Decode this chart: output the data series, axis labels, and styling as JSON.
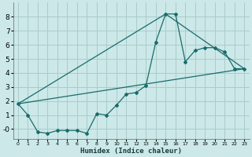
{
  "xlabel": "Humidex (Indice chaleur)",
  "bg_color": "#cce8e8",
  "grid_color": "#aacccc",
  "line_color": "#1a6b6b",
  "xlim": [
    -0.5,
    23.5
  ],
  "ylim": [
    -0.7,
    9.0
  ],
  "yticks": [
    0,
    1,
    2,
    3,
    4,
    5,
    6,
    7,
    8
  ],
  "ytick_labels": [
    "-0",
    "1",
    "2",
    "3",
    "4",
    "5",
    "6",
    "7",
    "8"
  ],
  "xticks": [
    0,
    1,
    2,
    3,
    4,
    5,
    6,
    7,
    8,
    9,
    10,
    11,
    12,
    13,
    14,
    15,
    16,
    17,
    18,
    19,
    20,
    21,
    22,
    23
  ],
  "series1_x": [
    0,
    1,
    2,
    3,
    4,
    5,
    6,
    7,
    8,
    9,
    10,
    11,
    12,
    13,
    14,
    15,
    16,
    17,
    18,
    19,
    20,
    21,
    22,
    23
  ],
  "series1_y": [
    1.8,
    1.0,
    -0.2,
    -0.3,
    -0.1,
    -0.1,
    -0.1,
    -0.3,
    1.1,
    1.0,
    1.7,
    2.5,
    2.6,
    3.1,
    6.2,
    8.2,
    8.2,
    4.8,
    5.6,
    5.8,
    5.8,
    5.5,
    4.3,
    4.3
  ],
  "line1_x": [
    0,
    23
  ],
  "line1_y": [
    1.8,
    4.3
  ],
  "line2_x": [
    0,
    15,
    23
  ],
  "line2_y": [
    1.8,
    8.2,
    4.3
  ]
}
